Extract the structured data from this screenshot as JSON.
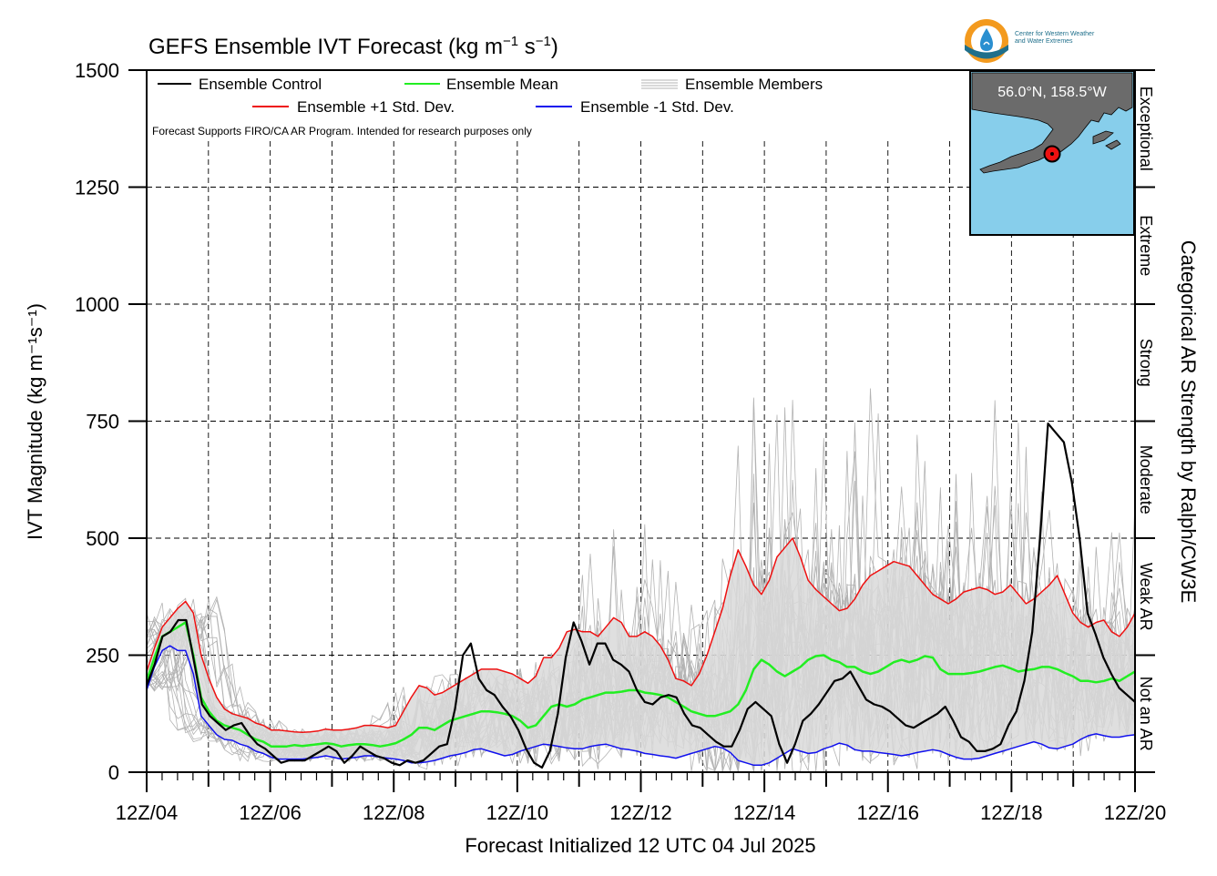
{
  "title": "GEFS Ensemble IVT Forecast (kg m",
  "title_sup1": "−1",
  "title_s": " s",
  "title_sup2": "−1",
  "title_close": ")",
  "ylabel": "IVT Magnitude (kg m⁻¹s⁻¹)",
  "xlabel": "Forecast Initialized 12 UTC 04 Jul 2025",
  "right_axis_label": "Categorical AR Strength by Ralph/CW3E",
  "disclaimer": "Forecast Supports FIRO/CA AR Program. Intended for research purposes only",
  "logo_line1": "Center for Western Weather",
  "logo_line2": "and Water Extremes",
  "inset_location": "56.0°N, 158.5°W",
  "legend": {
    "control": "Ensemble Control",
    "mean": "Ensemble Mean",
    "members": "Ensemble Members",
    "plus": "Ensemble +1 Std. Dev.",
    "minus": "Ensemble -1 Std. Dev."
  },
  "categories": [
    {
      "label": "Not an AR",
      "from": 0,
      "to": 250
    },
    {
      "label": "Weak AR",
      "from": 250,
      "to": 500
    },
    {
      "label": "Moderate",
      "from": 500,
      "to": 750
    },
    {
      "label": "Strong",
      "from": 750,
      "to": 1000
    },
    {
      "label": "Extreme",
      "from": 1000,
      "to": 1250
    },
    {
      "label": "Exceptional",
      "from": 1250,
      "to": 1500
    }
  ],
  "colors": {
    "control": "#000000",
    "mean": "#22ee22",
    "plus": "#ee1111",
    "minus": "#1111ee",
    "members": "#b3b3b3",
    "spread_fill": "#d9d9d9",
    "inset_ocean": "#87ceeb",
    "inset_land": "#6b6b6b",
    "marker": "#ee1111"
  },
  "chart_data": {
    "type": "line",
    "x_start": "12Z/04",
    "x_step_hours": 6,
    "x_ticks": [
      "12Z/04",
      "12Z/06",
      "12Z/08",
      "12Z/10",
      "12Z/12",
      "12Z/14",
      "12Z/16",
      "12Z/18",
      "12Z/20"
    ],
    "ylim": [
      0,
      1500
    ],
    "yticks": [
      0,
      250,
      500,
      750,
      1000,
      1250,
      1500
    ],
    "grid": true,
    "legend_position": "top-left",
    "series": [
      {
        "name": "Ensemble Control",
        "values": [
          185,
          230,
          290,
          300,
          325,
          325,
          235,
          145,
          120,
          105,
          90,
          100,
          105,
          80,
          60,
          50,
          35,
          20,
          25,
          25,
          25,
          35,
          45,
          55,
          45,
          20,
          35,
          55,
          45,
          35,
          30,
          20,
          15,
          25,
          20,
          25,
          40,
          55,
          60,
          135,
          250,
          275,
          200,
          175,
          165,
          140,
          120,
          90,
          50,
          20,
          10,
          45,
          125,
          245,
          320,
          280,
          230,
          275,
          275,
          240,
          230,
          215,
          175,
          150,
          145,
          160,
          165,
          160,
          125,
          100,
          95,
          80,
          65,
          55,
          55,
          90,
          135,
          150,
          135,
          120,
          60,
          20,
          60,
          110,
          125,
          145,
          170,
          195,
          200,
          215,
          185,
          155,
          145,
          140,
          130,
          115,
          100,
          95,
          105,
          115,
          125,
          140,
          110,
          75,
          65,
          45,
          45,
          50,
          60,
          100,
          130,
          195,
          300,
          500,
          745,
          725,
          705,
          620,
          500,
          340,
          295,
          245,
          210,
          180,
          165,
          150
        ]
      },
      {
        "name": "Ensemble Mean",
        "values": [
          195,
          245,
          290,
          300,
          310,
          320,
          250,
          160,
          130,
          110,
          100,
          95,
          90,
          80,
          70,
          65,
          55,
          55,
          55,
          58,
          56,
          58,
          60,
          62,
          60,
          55,
          58,
          60,
          60,
          58,
          55,
          58,
          62,
          70,
          80,
          95,
          95,
          90,
          100,
          110,
          115,
          120,
          125,
          130,
          130,
          128,
          125,
          120,
          110,
          95,
          100,
          120,
          140,
          145,
          140,
          145,
          155,
          160,
          165,
          170,
          170,
          172,
          175,
          175,
          170,
          168,
          165,
          160,
          150,
          140,
          130,
          125,
          120,
          120,
          125,
          130,
          145,
          175,
          220,
          240,
          230,
          215,
          205,
          215,
          225,
          240,
          248,
          250,
          240,
          235,
          225,
          225,
          215,
          210,
          215,
          225,
          235,
          240,
          235,
          240,
          248,
          245,
          220,
          210,
          210,
          210,
          212,
          215,
          220,
          225,
          228,
          222,
          215,
          218,
          220,
          225,
          225,
          220,
          212,
          205,
          195,
          195,
          192,
          195,
          200,
          195,
          205,
          215
        ]
      },
      {
        "name": "Ensemble +1 Std. Dev.",
        "values": [
          215,
          265,
          310,
          330,
          350,
          365,
          340,
          250,
          200,
          160,
          135,
          125,
          120,
          115,
          105,
          100,
          90,
          90,
          88,
          86,
          85,
          86,
          88,
          92,
          90,
          90,
          92,
          95,
          100,
          100,
          98,
          95,
          100,
          130,
          160,
          185,
          180,
          165,
          170,
          180,
          190,
          200,
          210,
          220,
          220,
          220,
          215,
          210,
          200,
          190,
          205,
          245,
          245,
          265,
          300,
          305,
          300,
          300,
          290,
          310,
          330,
          320,
          290,
          290,
          300,
          290,
          270,
          240,
          200,
          195,
          185,
          210,
          250,
          300,
          350,
          420,
          475,
          440,
          400,
          380,
          410,
          460,
          480,
          500,
          460,
          410,
          390,
          375,
          360,
          345,
          350,
          370,
          400,
          420,
          430,
          440,
          450,
          445,
          440,
          420,
          400,
          380,
          370,
          360,
          370,
          385,
          390,
          395,
          390,
          380,
          385,
          400,
          380,
          360,
          370,
          385,
          400,
          420,
          380,
          340,
          320,
          310,
          320,
          325,
          300,
          290,
          310,
          340
        ]
      },
      {
        "name": "Ensemble -1 Std. Dev.",
        "values": [
          175,
          225,
          260,
          270,
          260,
          260,
          210,
          120,
          100,
          80,
          70,
          68,
          60,
          55,
          45,
          40,
          32,
          28,
          28,
          28,
          28,
          30,
          32,
          35,
          32,
          28,
          30,
          32,
          35,
          35,
          32,
          30,
          28,
          25,
          20,
          20,
          22,
          25,
          30,
          35,
          38,
          42,
          48,
          50,
          45,
          40,
          35,
          38,
          45,
          50,
          55,
          60,
          58,
          55,
          52,
          50,
          50,
          55,
          58,
          60,
          55,
          50,
          48,
          45,
          40,
          38,
          35,
          33,
          30,
          35,
          40,
          45,
          50,
          55,
          52,
          42,
          25,
          20,
          15,
          15,
          20,
          30,
          40,
          50,
          45,
          40,
          42,
          50,
          55,
          62,
          58,
          48,
          45,
          45,
          42,
          40,
          38,
          35,
          38,
          42,
          45,
          48,
          45,
          38,
          32,
          28,
          28,
          30,
          35,
          40,
          45,
          50,
          55,
          60,
          65,
          60,
          52,
          50,
          55,
          60,
          70,
          78,
          82,
          78,
          75,
          75,
          78,
          80
        ]
      }
    ]
  }
}
